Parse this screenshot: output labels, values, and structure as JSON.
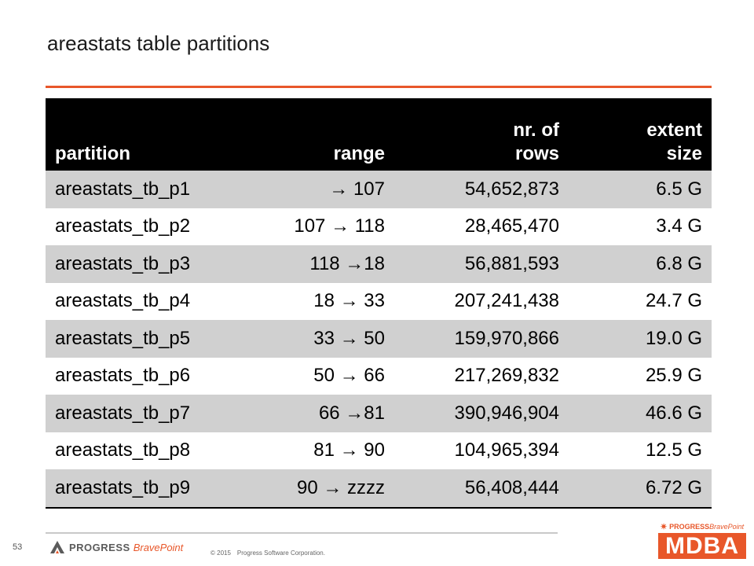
{
  "slide": {
    "title": "areastats table partitions",
    "page_number": "53"
  },
  "table": {
    "headers": {
      "partition": "partition",
      "range": "range",
      "rows_line1": "nr. of",
      "rows_line2": "rows",
      "size_line1": "extent",
      "size_line2": "size"
    },
    "rows": [
      {
        "partition": "areastats_tb_p1",
        "range": "→ 107",
        "rows": "54,652,873",
        "size": "6.5 G"
      },
      {
        "partition": "areastats_tb_p2",
        "range": "107 → 118",
        "rows": "28,465,470",
        "size": "3.4 G"
      },
      {
        "partition": "areastats_tb_p3",
        "range": "118 →18",
        "rows": "56,881,593",
        "size": "6.8 G"
      },
      {
        "partition": "areastats_tb_p4",
        "range": "18 → 33",
        "rows": "207,241,438",
        "size": "24.7 G"
      },
      {
        "partition": "areastats_tb_p5",
        "range": "33 → 50",
        "rows": "159,970,866",
        "size": "19.0 G"
      },
      {
        "partition": "areastats_tb_p6",
        "range": "50 → 66",
        "rows": "217,269,832",
        "size": "25.9 G"
      },
      {
        "partition": "areastats_tb_p7",
        "range": "66 →81",
        "rows": "390,946,904",
        "size": "46.6 G"
      },
      {
        "partition": "areastats_tb_p8",
        "range": "81 → 90",
        "rows": "104,965,394",
        "size": "12.5 G"
      },
      {
        "partition": "areastats_tb_p9",
        "range": "90 → zzzz",
        "rows": "56,408,444",
        "size": "6.72 G"
      }
    ]
  },
  "footer": {
    "logo_progress": "PROGRESS",
    "logo_brave": "BravePoint",
    "copyright_year": "© 2015",
    "copyright_company": "Progress Software Corporation.",
    "logo_icon": "progress-logo-icon"
  },
  "badge": {
    "progress": "PROGRESS",
    "brave": "BravePoint",
    "product": "MDBA",
    "star_icon": "star-icon"
  },
  "colors": {
    "accent": "#e8572a",
    "header_bg": "#000000",
    "row_shade": "#d0d0d0"
  }
}
